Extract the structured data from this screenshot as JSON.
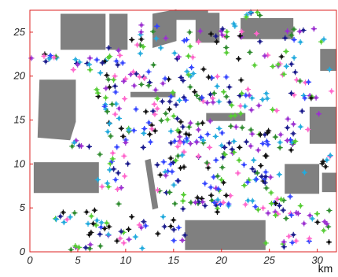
{
  "chart_data": {
    "type": "scatter",
    "title": "",
    "xlabel": "km",
    "ylabel": "",
    "xlim": [
      0,
      32
    ],
    "ylim": [
      0,
      27.5
    ],
    "x_ticks": [
      0,
      5,
      10,
      15,
      20,
      25,
      30
    ],
    "y_ticks": [
      0,
      5,
      10,
      15,
      20,
      25
    ],
    "grid": false,
    "frame_color": "#dd2222",
    "marker": "plus-star",
    "marker_colors": [
      "#1a1a8c",
      "#2e8b2e",
      "#9b2fd0",
      "#22aadd",
      "#ff66cc",
      "#111111",
      "#3344ff",
      "#55cc33"
    ],
    "obstacle_color": "#808080",
    "obstacles": [
      {
        "x": [
          3.2,
          7.9,
          7.9,
          3.2
        ],
        "y": [
          23.0,
          23.0,
          27.1,
          27.1
        ]
      },
      {
        "x": [
          8.3,
          10.2,
          10.2,
          8.3
        ],
        "y": [
          23.0,
          23.0,
          27.1,
          27.1
        ]
      },
      {
        "x": [
          12.8,
          15.3,
          15.3,
          12.8
        ],
        "y": [
          23.2,
          24.0,
          27.6,
          27.1
        ]
      },
      {
        "x": [
          15.2,
          18.6,
          18.6,
          15.2
        ],
        "y": [
          26.4,
          26.4,
          27.5,
          27.5
        ]
      },
      {
        "x": [
          17.3,
          19.8,
          19.8,
          17.3
        ],
        "y": [
          23.8,
          23.8,
          27.2,
          27.2
        ]
      },
      {
        "x": [
          22.0,
          27.5,
          27.5,
          22.0
        ],
        "y": [
          24.2,
          24.2,
          26.6,
          26.6
        ]
      },
      {
        "x": [
          30.3,
          32.0,
          32.0,
          30.3
        ],
        "y": [
          20.6,
          20.6,
          23.1,
          23.1
        ]
      },
      {
        "x": [
          0.8,
          4.2,
          4.8,
          4.8,
          1.0
        ],
        "y": [
          13.0,
          12.7,
          14.8,
          19.6,
          19.6
        ]
      },
      {
        "x": [
          10.5,
          15.2,
          15.2,
          10.5
        ],
        "y": [
          17.6,
          17.6,
          18.2,
          18.2
        ]
      },
      {
        "x": [
          18.4,
          22.5,
          22.5,
          18.4
        ],
        "y": [
          14.9,
          14.9,
          15.8,
          15.8
        ]
      },
      {
        "x": [
          29.2,
          32.0,
          32.0,
          29.2
        ],
        "y": [
          12.3,
          12.3,
          16.5,
          16.5
        ]
      },
      {
        "x": [
          0.4,
          7.2,
          7.2,
          0.4
        ],
        "y": [
          6.7,
          6.7,
          10.2,
          10.2
        ]
      },
      {
        "x": [
          26.6,
          30.2,
          30.2,
          26.6
        ],
        "y": [
          6.6,
          6.6,
          10.0,
          10.0
        ]
      },
      {
        "x": [
          30.5,
          32.0,
          32.0,
          30.5
        ],
        "y": [
          6.8,
          6.8,
          9.0,
          9.0
        ]
      },
      {
        "x": [
          12.0,
          12.6,
          13.4,
          12.8
        ],
        "y": [
          10.4,
          10.6,
          5.0,
          4.8
        ]
      },
      {
        "x": [
          16.2,
          24.6,
          24.6,
          16.2
        ],
        "y": [
          0.2,
          0.2,
          3.6,
          3.6
        ]
      }
    ],
    "clusters": [
      {
        "x": 1.8,
        "y": 22.2,
        "sx": 0.8,
        "sy": 0.3,
        "n": 10
      },
      {
        "x": 5.6,
        "y": 21.6,
        "sx": 0.6,
        "sy": 0.5,
        "n": 8
      },
      {
        "x": 8.6,
        "y": 22.0,
        "sx": 1.0,
        "sy": 0.6,
        "n": 12
      },
      {
        "x": 11.8,
        "y": 24.5,
        "sx": 1.0,
        "sy": 0.8,
        "n": 12
      },
      {
        "x": 16.5,
        "y": 23.0,
        "sx": 1.6,
        "sy": 1.2,
        "n": 18
      },
      {
        "x": 20.5,
        "y": 24.8,
        "sx": 1.2,
        "sy": 0.6,
        "n": 12
      },
      {
        "x": 28.0,
        "y": 24.8,
        "sx": 1.2,
        "sy": 0.4,
        "n": 8
      },
      {
        "x": 23.5,
        "y": 27.2,
        "sx": 1.0,
        "sy": 0.2,
        "n": 6
      },
      {
        "x": 25.5,
        "y": 21.5,
        "sx": 2.2,
        "sy": 1.4,
        "n": 24
      },
      {
        "x": 8.2,
        "y": 18.2,
        "sx": 1.0,
        "sy": 1.8,
        "n": 18
      },
      {
        "x": 11.5,
        "y": 19.8,
        "sx": 2.0,
        "sy": 0.8,
        "n": 22
      },
      {
        "x": 14.0,
        "y": 16.0,
        "sx": 2.0,
        "sy": 1.4,
        "n": 28
      },
      {
        "x": 18.5,
        "y": 18.5,
        "sx": 2.0,
        "sy": 1.5,
        "n": 30
      },
      {
        "x": 21.5,
        "y": 17.0,
        "sx": 1.8,
        "sy": 1.2,
        "n": 20
      },
      {
        "x": 28.0,
        "y": 17.5,
        "sx": 1.5,
        "sy": 2.0,
        "n": 20
      },
      {
        "x": 10.0,
        "y": 13.0,
        "sx": 1.4,
        "sy": 1.5,
        "n": 20
      },
      {
        "x": 16.5,
        "y": 12.5,
        "sx": 2.0,
        "sy": 1.2,
        "n": 28
      },
      {
        "x": 21.5,
        "y": 12.5,
        "sx": 2.2,
        "sy": 1.4,
        "n": 28
      },
      {
        "x": 26.0,
        "y": 13.0,
        "sx": 1.5,
        "sy": 1.5,
        "n": 18
      },
      {
        "x": 5.0,
        "y": 12.2,
        "sx": 0.5,
        "sy": 0.3,
        "n": 6
      },
      {
        "x": 8.8,
        "y": 9.0,
        "sx": 0.8,
        "sy": 1.6,
        "n": 18
      },
      {
        "x": 14.5,
        "y": 8.5,
        "sx": 1.5,
        "sy": 1.5,
        "n": 22
      },
      {
        "x": 20.0,
        "y": 9.0,
        "sx": 2.2,
        "sy": 1.5,
        "n": 28
      },
      {
        "x": 24.5,
        "y": 8.5,
        "sx": 1.2,
        "sy": 1.6,
        "n": 18
      },
      {
        "x": 19.0,
        "y": 5.6,
        "sx": 3.2,
        "sy": 0.6,
        "n": 28
      },
      {
        "x": 25.5,
        "y": 4.6,
        "sx": 1.8,
        "sy": 0.7,
        "n": 14
      },
      {
        "x": 29.5,
        "y": 3.2,
        "sx": 1.5,
        "sy": 1.0,
        "n": 14
      },
      {
        "x": 3.0,
        "y": 3.8,
        "sx": 1.0,
        "sy": 0.4,
        "n": 8
      },
      {
        "x": 7.2,
        "y": 2.0,
        "sx": 0.8,
        "sy": 1.6,
        "n": 22
      },
      {
        "x": 10.5,
        "y": 2.5,
        "sx": 1.2,
        "sy": 1.0,
        "n": 14
      },
      {
        "x": 4.5,
        "y": 0.6,
        "sx": 0.6,
        "sy": 0.3,
        "n": 4
      },
      {
        "x": 14.8,
        "y": 2.0,
        "sx": 0.8,
        "sy": 1.2,
        "n": 10
      },
      {
        "x": 26.5,
        "y": 1.0,
        "sx": 1.5,
        "sy": 0.5,
        "n": 8
      },
      {
        "x": 31.0,
        "y": 10.5,
        "sx": 0.4,
        "sy": 1.0,
        "n": 6
      }
    ]
  }
}
